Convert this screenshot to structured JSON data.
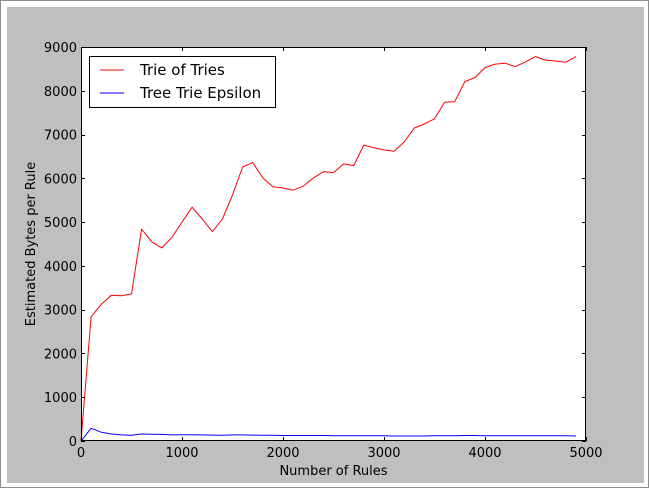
{
  "chart_data": {
    "type": "line",
    "title": "",
    "xlabel": "Number of Rules",
    "ylabel": "Estimated Bytes per Rule",
    "xlim": [
      0,
      5000
    ],
    "ylim": [
      0,
      9000
    ],
    "x_ticks": [
      0,
      1000,
      2000,
      3000,
      4000,
      5000
    ],
    "y_ticks": [
      0,
      1000,
      2000,
      3000,
      4000,
      5000,
      6000,
      7000,
      8000,
      9000
    ],
    "grid": false,
    "legend_position": "top-left",
    "series": [
      {
        "name": "Trie of Tries",
        "color": "#ff0000",
        "points": [
          [
            0,
            0
          ],
          [
            100,
            2840
          ],
          [
            200,
            3120
          ],
          [
            300,
            3330
          ],
          [
            400,
            3320
          ],
          [
            500,
            3360
          ],
          [
            600,
            4840
          ],
          [
            700,
            4550
          ],
          [
            800,
            4410
          ],
          [
            900,
            4650
          ],
          [
            1000,
            5000
          ],
          [
            1100,
            5340
          ],
          [
            1200,
            5070
          ],
          [
            1300,
            4780
          ],
          [
            1400,
            5070
          ],
          [
            1500,
            5620
          ],
          [
            1600,
            6260
          ],
          [
            1700,
            6360
          ],
          [
            1800,
            6010
          ],
          [
            1900,
            5810
          ],
          [
            2000,
            5780
          ],
          [
            2100,
            5730
          ],
          [
            2200,
            5820
          ],
          [
            2300,
            6010
          ],
          [
            2400,
            6150
          ],
          [
            2500,
            6130
          ],
          [
            2600,
            6330
          ],
          [
            2700,
            6290
          ],
          [
            2800,
            6760
          ],
          [
            2900,
            6700
          ],
          [
            3000,
            6650
          ],
          [
            3100,
            6620
          ],
          [
            3200,
            6830
          ],
          [
            3300,
            7150
          ],
          [
            3400,
            7240
          ],
          [
            3500,
            7360
          ],
          [
            3600,
            7740
          ],
          [
            3700,
            7750
          ],
          [
            3800,
            8210
          ],
          [
            3900,
            8300
          ],
          [
            4000,
            8530
          ],
          [
            4100,
            8610
          ],
          [
            4200,
            8630
          ],
          [
            4300,
            8550
          ],
          [
            4400,
            8660
          ],
          [
            4500,
            8780
          ],
          [
            4600,
            8700
          ],
          [
            4700,
            8680
          ],
          [
            4800,
            8650
          ],
          [
            4900,
            8780
          ]
        ]
      },
      {
        "name": "Tree Trie Epsilon",
        "color": "#0000ff",
        "points": [
          [
            0,
            0
          ],
          [
            100,
            290
          ],
          [
            200,
            200
          ],
          [
            300,
            160
          ],
          [
            400,
            140
          ],
          [
            500,
            130
          ],
          [
            600,
            160
          ],
          [
            700,
            155
          ],
          [
            800,
            150
          ],
          [
            900,
            140
          ],
          [
            1000,
            145
          ],
          [
            1100,
            145
          ],
          [
            1200,
            140
          ],
          [
            1300,
            135
          ],
          [
            1400,
            130
          ],
          [
            1500,
            140
          ],
          [
            1600,
            140
          ],
          [
            1700,
            135
          ],
          [
            1800,
            130
          ],
          [
            1900,
            130
          ],
          [
            2000,
            125
          ],
          [
            2100,
            125
          ],
          [
            2200,
            125
          ],
          [
            2300,
            125
          ],
          [
            2400,
            125
          ],
          [
            2500,
            120
          ],
          [
            2600,
            120
          ],
          [
            2700,
            120
          ],
          [
            2800,
            120
          ],
          [
            2900,
            120
          ],
          [
            3000,
            120
          ],
          [
            3100,
            115
          ],
          [
            3200,
            115
          ],
          [
            3300,
            115
          ],
          [
            3400,
            115
          ],
          [
            3500,
            120
          ],
          [
            3600,
            120
          ],
          [
            3700,
            120
          ],
          [
            3800,
            125
          ],
          [
            3900,
            125
          ],
          [
            4000,
            120
          ],
          [
            4100,
            120
          ],
          [
            4200,
            120
          ],
          [
            4300,
            120
          ],
          [
            4400,
            120
          ],
          [
            4500,
            120
          ],
          [
            4600,
            120
          ],
          [
            4700,
            120
          ],
          [
            4800,
            120
          ],
          [
            4900,
            115
          ]
        ]
      }
    ]
  }
}
